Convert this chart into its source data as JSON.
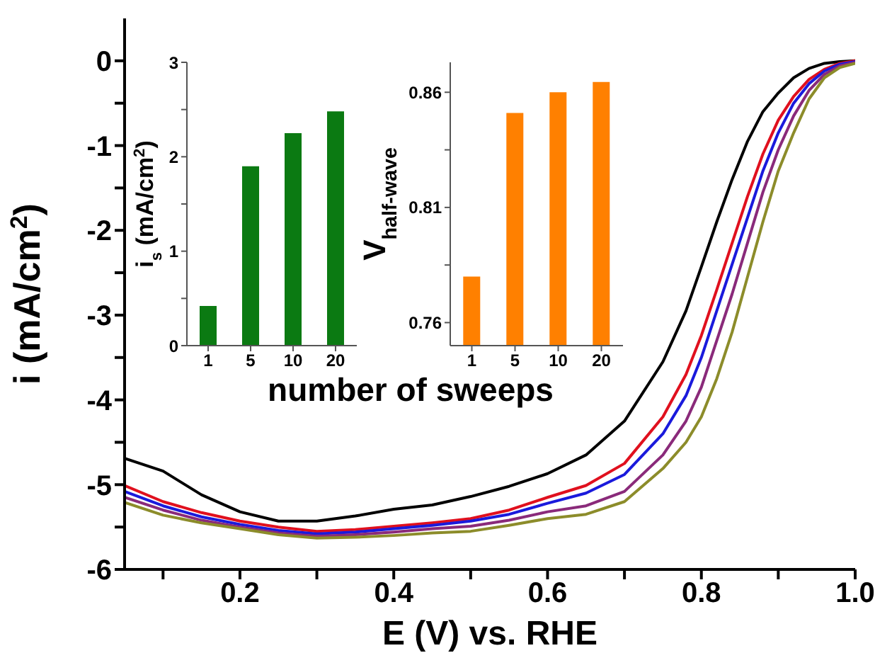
{
  "chart_data": [
    {
      "type": "line",
      "xlabel": "E (V) vs. RHE",
      "ylabel": "i (mA/cm$^{2}$)",
      "x": [
        0.05,
        0.1,
        0.15,
        0.2,
        0.25,
        0.3,
        0.35,
        0.4,
        0.45,
        0.5,
        0.55,
        0.6,
        0.65,
        0.7,
        0.75,
        0.78,
        0.8,
        0.82,
        0.84,
        0.86,
        0.88,
        0.9,
        0.92,
        0.94,
        0.96,
        0.98,
        1.0
      ],
      "series": [
        {
          "color": "#000000",
          "values": [
            -4.69,
            -4.84,
            -5.12,
            -5.32,
            -5.43,
            -5.43,
            -5.37,
            -5.29,
            -5.24,
            -5.14,
            -5.02,
            -4.87,
            -4.65,
            -4.25,
            -3.55,
            -2.95,
            -2.43,
            -1.9,
            -1.4,
            -0.95,
            -0.6,
            -0.38,
            -0.2,
            -0.09,
            -0.03,
            -0.01,
            0
          ]
        },
        {
          "color": "#e0101e",
          "values": [
            -5.01,
            -5.2,
            -5.33,
            -5.43,
            -5.5,
            -5.55,
            -5.53,
            -5.49,
            -5.45,
            -5.4,
            -5.3,
            -5.15,
            -5.01,
            -4.75,
            -4.2,
            -3.7,
            -3.24,
            -2.7,
            -2.15,
            -1.6,
            -1.1,
            -0.7,
            -0.42,
            -0.22,
            -0.1,
            -0.03,
            0
          ]
        },
        {
          "color": "#1a1adc",
          "values": [
            -5.08,
            -5.25,
            -5.38,
            -5.47,
            -5.54,
            -5.58,
            -5.56,
            -5.52,
            -5.48,
            -5.43,
            -5.35,
            -5.22,
            -5.1,
            -4.88,
            -4.4,
            -3.95,
            -3.5,
            -2.95,
            -2.4,
            -1.85,
            -1.3,
            -0.85,
            -0.5,
            -0.27,
            -0.12,
            -0.04,
            -0.01
          ]
        },
        {
          "color": "#8a2a7a",
          "values": [
            -5.15,
            -5.3,
            -5.42,
            -5.5,
            -5.57,
            -5.61,
            -5.59,
            -5.56,
            -5.52,
            -5.49,
            -5.42,
            -5.32,
            -5.25,
            -5.08,
            -4.65,
            -4.25,
            -3.85,
            -3.3,
            -2.75,
            -2.15,
            -1.55,
            -1.05,
            -0.65,
            -0.35,
            -0.16,
            -0.06,
            -0.02
          ]
        },
        {
          "color": "#8c8c2a",
          "values": [
            -5.21,
            -5.36,
            -5.45,
            -5.52,
            -5.59,
            -5.63,
            -5.62,
            -5.6,
            -5.57,
            -5.55,
            -5.48,
            -5.4,
            -5.35,
            -5.2,
            -4.81,
            -4.5,
            -4.2,
            -3.75,
            -3.2,
            -2.55,
            -1.9,
            -1.3,
            -0.85,
            -0.45,
            -0.2,
            -0.08,
            -0.03
          ]
        }
      ],
      "xlim": [
        0.05,
        1.0
      ],
      "xticks": [
        {
          "value": 0.1,
          "label": null
        },
        0.2,
        {
          "value": 0.3,
          "label": null
        },
        0.4,
        {
          "value": 0.5,
          "label": null
        },
        0.6,
        {
          "value": 0.7,
          "label": null
        },
        0.8,
        {
          "value": 0.9,
          "label": null
        },
        {
          "value": 1.0,
          "label": "1.0"
        }
      ],
      "ylim": [
        -6,
        0.5
      ],
      "yticks": [
        -6,
        {
          "value": -5.5,
          "label": null
        },
        -5,
        {
          "value": -4.5,
          "label": null
        },
        -4,
        {
          "value": -3.5,
          "label": null
        },
        -3,
        {
          "value": -2.5,
          "label": null
        },
        -2,
        {
          "value": -1.5,
          "label": null
        },
        -1,
        {
          "value": -0.5,
          "label": null
        },
        0
      ],
      "grid": false,
      "marker": "none",
      "line_style": "solid"
    },
    {
      "type": "bar",
      "xlabel": "number of sweeps",
      "ylabel": "i$_{s}$ (mA/cm$^{2}$)",
      "categories": [
        "1",
        "5",
        "10",
        "20"
      ],
      "series": [
        {
          "color": "#0b7a12",
          "values": [
            0.42,
            1.9,
            2.25,
            2.48
          ]
        }
      ],
      "ylim": [
        0,
        3
      ],
      "yticks": [
        0,
        {
          "value": 0.5,
          "label": null
        },
        1,
        {
          "value": 1.5,
          "label": null
        },
        2,
        {
          "value": 2.5,
          "label": null
        },
        3
      ],
      "grid": false
    },
    {
      "type": "bar",
      "ylabel": "V$_{half-wave}$",
      "categories": [
        "1",
        "5",
        "10",
        "20"
      ],
      "series": [
        {
          "color": "#ff8000",
          "values": [
            0.78,
            0.851,
            0.86,
            0.8645
          ]
        }
      ],
      "ylim": [
        0.75,
        0.873
      ],
      "yticks": [
        {
          "value": 0.76,
          "label": "0.76"
        },
        {
          "value": 0.785,
          "label": null
        },
        {
          "value": 0.81,
          "label": "0.81"
        },
        {
          "value": 0.835,
          "label": null
        },
        {
          "value": 0.86,
          "label": "0.86"
        }
      ],
      "grid": false
    }
  ]
}
